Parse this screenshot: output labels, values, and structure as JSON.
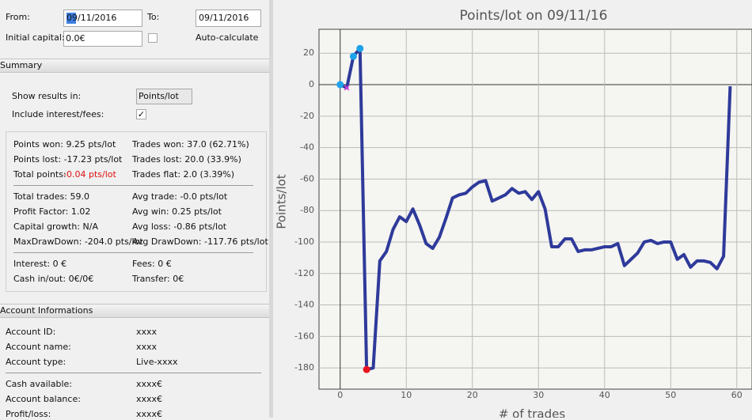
{
  "form": {
    "from_label": "From:",
    "from_value": "09/11/2016",
    "to_label": "To:",
    "to_value": "09/11/2016",
    "capital_label": "Initial capital:",
    "capital_value": "0.0€",
    "auto_label": "Auto-calculate"
  },
  "summary": {
    "title": "Summary",
    "show_label": "Show results in:",
    "show_value": "Points/lot",
    "include_label": "Include interest/fees:",
    "group1": [
      [
        "Points won: 9.25 pts/lot",
        "Trades won: 37.0 (62.71%)"
      ],
      [
        "Points lost: -17.23 pts/lot",
        "Trades lost: 20.0 (33.9%)"
      ]
    ],
    "total_label": "Total points:",
    "total_value": "-0.04 pts/lot",
    "flat": "Trades flat: 2.0 (3.39%)",
    "group2": [
      [
        "Total trades: 59.0",
        "Avg trade: -0.0 pts/lot"
      ],
      [
        "Profit Factor: 1.02",
        "Avg win: 0.25 pts/lot"
      ],
      [
        "Capital growth: N/A",
        "Avg loss: -0.86 pts/lot"
      ],
      [
        "MaxDrawDown: -204.0 pts/lot",
        "Avg DrawDown: -117.76 pts/lot"
      ]
    ],
    "group3": [
      [
        "Interest: 0 €",
        "Fees: 0 €"
      ],
      [
        "Cash in/out: 0€/0€",
        "Transfer: 0€"
      ]
    ]
  },
  "account": {
    "title": "Account Informations",
    "group1": [
      [
        "Account ID:",
        "xxxx"
      ],
      [
        "Account name:",
        "xxxx"
      ],
      [
        "Account type:",
        "Live-xxxx"
      ]
    ],
    "group2": [
      [
        "Cash available:",
        "xxxx€"
      ],
      [
        "Account balance:",
        "xxxx€"
      ],
      [
        "Profit/loss:",
        "xxxx€"
      ]
    ]
  },
  "chart_data": {
    "type": "line",
    "title": "Points/lot on 09/11/16",
    "x_label": "# of trades",
    "y_label": "Points/lot",
    "x": [
      0,
      1,
      2,
      3,
      4,
      5,
      6,
      7,
      8,
      9,
      10,
      11,
      12,
      13,
      14,
      15,
      16,
      17,
      18,
      19,
      20,
      21,
      22,
      23,
      24,
      25,
      26,
      27,
      28,
      29,
      30,
      31,
      32,
      33,
      34,
      35,
      36,
      37,
      38,
      39,
      40,
      41,
      42,
      43,
      44,
      45,
      46,
      47,
      48,
      49,
      50,
      51,
      52,
      53,
      54,
      55,
      56,
      57,
      58,
      59
    ],
    "series": [
      {
        "color": "#2e3a9a",
        "values": [
          0,
          -2,
          18,
          23,
          -181,
          -180,
          -112,
          -106,
          -92,
          -84,
          -87,
          -79,
          -89,
          -101,
          -104,
          -97,
          -85,
          -72,
          -70,
          -69,
          -65,
          -62,
          -61,
          -74,
          -72,
          -70,
          -66,
          -69,
          -68,
          -73,
          -68,
          -79,
          -103,
          -103,
          -98,
          -98,
          -106,
          -105,
          -105,
          -104,
          -103,
          -103,
          -101,
          -115,
          -111,
          -107,
          -100,
          -99,
          -101,
          -100,
          -100,
          -111,
          -108,
          -116,
          -112,
          -112,
          -113,
          -117,
          -109,
          -1
        ]
      }
    ],
    "markers": [
      {
        "color": "#1fa3ea",
        "shape": "dot",
        "x": [
          0,
          2,
          3
        ],
        "values": [
          0,
          18,
          23
        ]
      },
      {
        "color": "#e8141e",
        "shape": "dot",
        "x": [
          4
        ],
        "values": [
          -181
        ]
      },
      {
        "color": "#e040e0",
        "shape": "cross",
        "x": [
          1
        ],
        "values": [
          -2
        ]
      }
    ],
    "xlim": [
      -3.2,
      62.3
    ],
    "ylim": [
      -193.5,
      35.2
    ],
    "xticks": [
      0,
      10,
      20,
      30,
      40,
      50,
      60
    ],
    "yticks": [
      20,
      0,
      -20,
      -40,
      -60,
      -80,
      -100,
      -120,
      -140,
      -160,
      -180
    ],
    "grid": true
  }
}
